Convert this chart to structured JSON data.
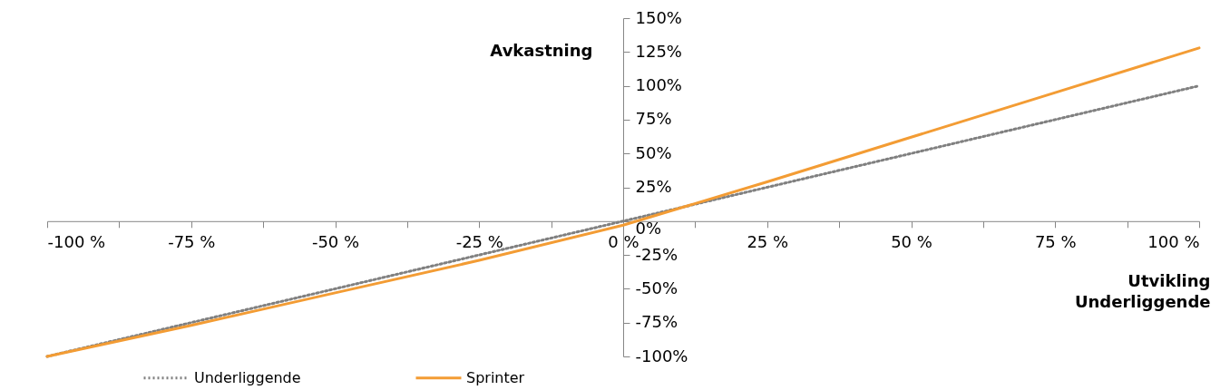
{
  "chart_data": {
    "type": "line",
    "xlabel": "Utvikling Underliggende",
    "ylabel": "Avkastning",
    "x": [
      -100,
      -75,
      -50,
      -25,
      0,
      25,
      50,
      75,
      100
    ],
    "series": [
      {
        "name": "Underliggende",
        "color": "#808080",
        "line_style": "dotted",
        "values": [
          -100,
          -75,
          -50,
          -25,
          0,
          25,
          50,
          75,
          100
        ]
      },
      {
        "name": "Sprinter",
        "color": "#f39c34",
        "line_style": "solid",
        "values": [
          -100,
          -77,
          -53,
          -29,
          -3,
          29,
          62,
          95,
          128
        ]
      }
    ],
    "xlim": [
      -100,
      100
    ],
    "xticks": [
      {
        "value": -100,
        "label": "-100 %"
      },
      {
        "value": -87.5,
        "label": null
      },
      {
        "value": -75,
        "label": "-75 %"
      },
      {
        "value": -62.5,
        "label": null
      },
      {
        "value": -50,
        "label": "-50 %"
      },
      {
        "value": -37.5,
        "label": null
      },
      {
        "value": -25,
        "label": "-25 %"
      },
      {
        "value": -12.5,
        "label": null
      },
      {
        "value": 0,
        "label": "0 %"
      },
      {
        "value": 12.5,
        "label": null
      },
      {
        "value": 25,
        "label": "25 %"
      },
      {
        "value": 37.5,
        "label": null
      },
      {
        "value": 50,
        "label": "50 %"
      },
      {
        "value": 62.5,
        "label": null
      },
      {
        "value": 75,
        "label": "75 %"
      },
      {
        "value": 87.5,
        "label": null
      },
      {
        "value": 100,
        "label": "100 %"
      }
    ],
    "ylim": [
      -100,
      150
    ],
    "yticks": [
      {
        "value": -100,
        "label": "-100%"
      },
      {
        "value": -75,
        "label": "-75%"
      },
      {
        "value": -50,
        "label": "-50%"
      },
      {
        "value": -25,
        "label": "-25%"
      },
      {
        "value": 0,
        "label": "0%"
      },
      {
        "value": 25,
        "label": "25%"
      },
      {
        "value": 50,
        "label": "50%"
      },
      {
        "value": 75,
        "label": "75%"
      },
      {
        "value": 100,
        "label": "100%"
      },
      {
        "value": 125,
        "label": "125%"
      },
      {
        "value": 150,
        "label": "150%"
      }
    ],
    "grid": false,
    "legend": "bottom left",
    "marker": "none"
  }
}
